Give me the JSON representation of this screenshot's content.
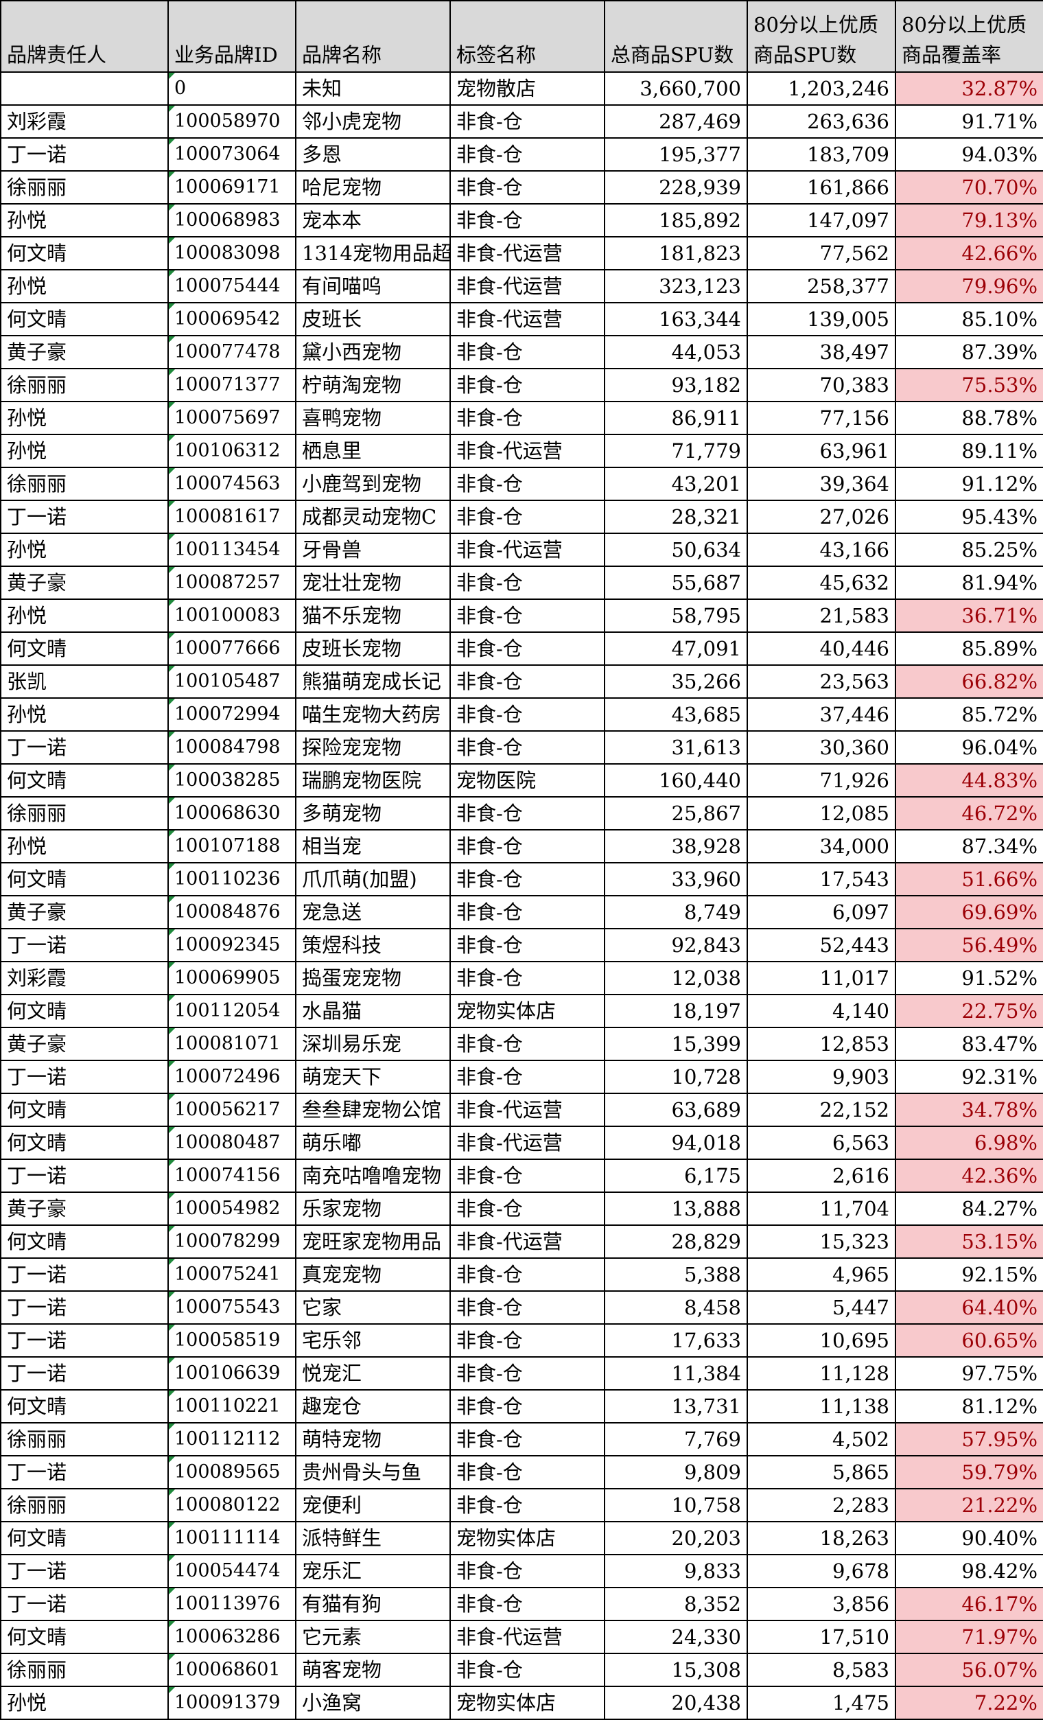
{
  "colors": {
    "header_bg": "#d9d9d9",
    "low_rate_bg": "#f8c9cc",
    "low_rate_text": "#9c0006",
    "flag": "#1f8a3c"
  },
  "table": {
    "headers": [
      "品牌责任人",
      "业务品牌ID",
      "品牌名称",
      "标签名称",
      "总商品SPU数",
      "80分以上优质商品SPU数",
      "80分以上优质商品覆盖率"
    ],
    "rows": [
      {
        "owner": "",
        "id": "0",
        "brand": "未知",
        "tag": "宠物散店",
        "total": "3,660,700",
        "quality": "1,203,246",
        "rate": "32.87%",
        "low": true
      },
      {
        "owner": "刘彩霞",
        "id": "100058970",
        "brand": "邻小虎宠物",
        "tag": "非食-仓",
        "total": "287,469",
        "quality": "263,636",
        "rate": "91.71%",
        "low": false
      },
      {
        "owner": "丁一诺",
        "id": "100073064",
        "brand": "多恩",
        "tag": "非食-仓",
        "total": "195,377",
        "quality": "183,709",
        "rate": "94.03%",
        "low": false
      },
      {
        "owner": "徐丽丽",
        "id": "100069171",
        "brand": "哈尼宠物",
        "tag": "非食-仓",
        "total": "228,939",
        "quality": "161,866",
        "rate": "70.70%",
        "low": true
      },
      {
        "owner": "孙悦",
        "id": "100068983",
        "brand": "宠本本",
        "tag": "非食-仓",
        "total": "185,892",
        "quality": "147,097",
        "rate": "79.13%",
        "low": true
      },
      {
        "owner": "何文晴",
        "id": "100083098",
        "brand": "1314宠物用品超",
        "tag": "非食-代运营",
        "total": "181,823",
        "quality": "77,562",
        "rate": "42.66%",
        "low": true
      },
      {
        "owner": "孙悦",
        "id": "100075444",
        "brand": "有间喵呜",
        "tag": "非食-代运营",
        "total": "323,123",
        "quality": "258,377",
        "rate": "79.96%",
        "low": true
      },
      {
        "owner": "何文晴",
        "id": "100069542",
        "brand": "皮班长",
        "tag": "非食-代运营",
        "total": "163,344",
        "quality": "139,005",
        "rate": "85.10%",
        "low": false
      },
      {
        "owner": "黄子豪",
        "id": "100077478",
        "brand": "黛小西宠物",
        "tag": "非食-仓",
        "total": "44,053",
        "quality": "38,497",
        "rate": "87.39%",
        "low": false
      },
      {
        "owner": "徐丽丽",
        "id": "100071377",
        "brand": "柠萌淘宠物",
        "tag": "非食-仓",
        "total": "93,182",
        "quality": "70,383",
        "rate": "75.53%",
        "low": true
      },
      {
        "owner": "孙悦",
        "id": "100075697",
        "brand": "喜鸭宠物",
        "tag": "非食-仓",
        "total": "86,911",
        "quality": "77,156",
        "rate": "88.78%",
        "low": false
      },
      {
        "owner": "孙悦",
        "id": "100106312",
        "brand": "栖息里",
        "tag": "非食-代运营",
        "total": "71,779",
        "quality": "63,961",
        "rate": "89.11%",
        "low": false
      },
      {
        "owner": "徐丽丽",
        "id": "100074563",
        "brand": "小鹿驾到宠物",
        "tag": "非食-仓",
        "total": "43,201",
        "quality": "39,364",
        "rate": "91.12%",
        "low": false
      },
      {
        "owner": "丁一诺",
        "id": "100081617",
        "brand": "成都灵动宠物C",
        "tag": "非食-仓",
        "total": "28,321",
        "quality": "27,026",
        "rate": "95.43%",
        "low": false
      },
      {
        "owner": "孙悦",
        "id": "100113454",
        "brand": "牙骨兽",
        "tag": "非食-代运营",
        "total": "50,634",
        "quality": "43,166",
        "rate": "85.25%",
        "low": false
      },
      {
        "owner": "黄子豪",
        "id": "100087257",
        "brand": "宠壮壮宠物",
        "tag": "非食-仓",
        "total": "55,687",
        "quality": "45,632",
        "rate": "81.94%",
        "low": false
      },
      {
        "owner": "孙悦",
        "id": "100100083",
        "brand": "猫不乐宠物",
        "tag": "非食-仓",
        "total": "58,795",
        "quality": "21,583",
        "rate": "36.71%",
        "low": true
      },
      {
        "owner": "何文晴",
        "id": "100077666",
        "brand": "皮班长宠物",
        "tag": "非食-仓",
        "total": "47,091",
        "quality": "40,446",
        "rate": "85.89%",
        "low": false
      },
      {
        "owner": "张凯",
        "id": "100105487",
        "brand": "熊猫萌宠成长记",
        "tag": "非食-仓",
        "total": "35,266",
        "quality": "23,563",
        "rate": "66.82%",
        "low": true
      },
      {
        "owner": "孙悦",
        "id": "100072994",
        "brand": "喵生宠物大药房",
        "tag": "非食-仓",
        "total": "43,685",
        "quality": "37,446",
        "rate": "85.72%",
        "low": false
      },
      {
        "owner": "丁一诺",
        "id": "100084798",
        "brand": "探险宠宠物",
        "tag": "非食-仓",
        "total": "31,613",
        "quality": "30,360",
        "rate": "96.04%",
        "low": false
      },
      {
        "owner": "何文晴",
        "id": "100038285",
        "brand": "瑞鹏宠物医院",
        "tag": "宠物医院",
        "total": "160,440",
        "quality": "71,926",
        "rate": "44.83%",
        "low": true
      },
      {
        "owner": "徐丽丽",
        "id": "100068630",
        "brand": "多萌宠物",
        "tag": "非食-仓",
        "total": "25,867",
        "quality": "12,085",
        "rate": "46.72%",
        "low": true
      },
      {
        "owner": "孙悦",
        "id": "100107188",
        "brand": "相当宠",
        "tag": "非食-仓",
        "total": "38,928",
        "quality": "34,000",
        "rate": "87.34%",
        "low": false
      },
      {
        "owner": "何文晴",
        "id": "100110236",
        "brand": "爪爪萌(加盟)",
        "tag": "非食-仓",
        "total": "33,960",
        "quality": "17,543",
        "rate": "51.66%",
        "low": true
      },
      {
        "owner": "黄子豪",
        "id": "100084876",
        "brand": "宠急送",
        "tag": "非食-仓",
        "total": "8,749",
        "quality": "6,097",
        "rate": "69.69%",
        "low": true
      },
      {
        "owner": "丁一诺",
        "id": "100092345",
        "brand": "策煜科技",
        "tag": "非食-仓",
        "total": "92,843",
        "quality": "52,443",
        "rate": "56.49%",
        "low": true
      },
      {
        "owner": "刘彩霞",
        "id": "100069905",
        "brand": "捣蛋宠宠物",
        "tag": "非食-仓",
        "total": "12,038",
        "quality": "11,017",
        "rate": "91.52%",
        "low": false
      },
      {
        "owner": "何文晴",
        "id": "100112054",
        "brand": "水晶猫",
        "tag": "宠物实体店",
        "total": "18,197",
        "quality": "4,140",
        "rate": "22.75%",
        "low": true
      },
      {
        "owner": "黄子豪",
        "id": "100081071",
        "brand": "深圳易乐宠",
        "tag": "非食-仓",
        "total": "15,399",
        "quality": "12,853",
        "rate": "83.47%",
        "low": false
      },
      {
        "owner": "丁一诺",
        "id": "100072496",
        "brand": "萌宠天下",
        "tag": "非食-仓",
        "total": "10,728",
        "quality": "9,903",
        "rate": "92.31%",
        "low": false
      },
      {
        "owner": "何文晴",
        "id": "100056217",
        "brand": "叁叁肆宠物公馆",
        "tag": "非食-代运营",
        "total": "63,689",
        "quality": "22,152",
        "rate": "34.78%",
        "low": true
      },
      {
        "owner": "何文晴",
        "id": "100080487",
        "brand": "萌乐嘟",
        "tag": "非食-代运营",
        "total": "94,018",
        "quality": "6,563",
        "rate": "6.98%",
        "low": true
      },
      {
        "owner": "丁一诺",
        "id": "100074156",
        "brand": "南充咕噜噜宠物",
        "tag": "非食-仓",
        "total": "6,175",
        "quality": "2,616",
        "rate": "42.36%",
        "low": true
      },
      {
        "owner": "黄子豪",
        "id": "100054982",
        "brand": "乐家宠物",
        "tag": "非食-仓",
        "total": "13,888",
        "quality": "11,704",
        "rate": "84.27%",
        "low": false
      },
      {
        "owner": "何文晴",
        "id": "100078299",
        "brand": "宠旺家宠物用品",
        "tag": "非食-代运营",
        "total": "28,829",
        "quality": "15,323",
        "rate": "53.15%",
        "low": true
      },
      {
        "owner": "丁一诺",
        "id": "100075241",
        "brand": "真宠宠物",
        "tag": "非食-仓",
        "total": "5,388",
        "quality": "4,965",
        "rate": "92.15%",
        "low": false
      },
      {
        "owner": "丁一诺",
        "id": "100075543",
        "brand": "它家",
        "tag": "非食-仓",
        "total": "8,458",
        "quality": "5,447",
        "rate": "64.40%",
        "low": true
      },
      {
        "owner": "丁一诺",
        "id": "100058519",
        "brand": "宅乐邻",
        "tag": "非食-仓",
        "total": "17,633",
        "quality": "10,695",
        "rate": "60.65%",
        "low": true
      },
      {
        "owner": "丁一诺",
        "id": "100106639",
        "brand": "悦宠汇",
        "tag": "非食-仓",
        "total": "11,384",
        "quality": "11,128",
        "rate": "97.75%",
        "low": false
      },
      {
        "owner": "何文晴",
        "id": "100110221",
        "brand": "趣宠仓",
        "tag": "非食-仓",
        "total": "13,731",
        "quality": "11,138",
        "rate": "81.12%",
        "low": false
      },
      {
        "owner": "徐丽丽",
        "id": "100112112",
        "brand": "萌特宠物",
        "tag": "非食-仓",
        "total": "7,769",
        "quality": "4,502",
        "rate": "57.95%",
        "low": true
      },
      {
        "owner": "丁一诺",
        "id": "100089565",
        "brand": "贵州骨头与鱼",
        "tag": "非食-仓",
        "total": "9,809",
        "quality": "5,865",
        "rate": "59.79%",
        "low": true
      },
      {
        "owner": "徐丽丽",
        "id": "100080122",
        "brand": "宠便利",
        "tag": "非食-仓",
        "total": "10,758",
        "quality": "2,283",
        "rate": "21.22%",
        "low": true
      },
      {
        "owner": "何文晴",
        "id": "100111114",
        "brand": "派特鲜生",
        "tag": "宠物实体店",
        "total": "20,203",
        "quality": "18,263",
        "rate": "90.40%",
        "low": false
      },
      {
        "owner": "丁一诺",
        "id": "100054474",
        "brand": "宠乐汇",
        "tag": "非食-仓",
        "total": "9,833",
        "quality": "9,678",
        "rate": "98.42%",
        "low": false
      },
      {
        "owner": "丁一诺",
        "id": "100113976",
        "brand": "有猫有狗",
        "tag": "非食-仓",
        "total": "8,352",
        "quality": "3,856",
        "rate": "46.17%",
        "low": true
      },
      {
        "owner": "何文晴",
        "id": "100063286",
        "brand": "它元素",
        "tag": "非食-代运营",
        "total": "24,330",
        "quality": "17,510",
        "rate": "71.97%",
        "low": true
      },
      {
        "owner": "徐丽丽",
        "id": "100068601",
        "brand": "萌客宠物",
        "tag": "非食-仓",
        "total": "15,308",
        "quality": "8,583",
        "rate": "56.07%",
        "low": true
      },
      {
        "owner": "孙悦",
        "id": "100091379",
        "brand": "小渔窝",
        "tag": "宠物实体店",
        "total": "20,438",
        "quality": "1,475",
        "rate": "7.22%",
        "low": true
      }
    ]
  }
}
